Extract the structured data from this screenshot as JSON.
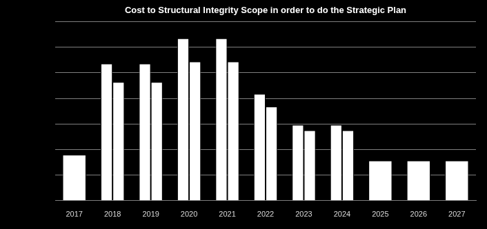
{
  "chart_data": {
    "type": "bar",
    "title": "Cost to Structural Integrity Scope in order to do the Strategic Plan",
    "categories": [
      "2017",
      "2018",
      "2019",
      "2020",
      "2021",
      "2022",
      "2023",
      "2024",
      "2025",
      "2026",
      "2027"
    ],
    "series": [
      {
        "color": "#ffffff",
        "values": [
          18,
          53.6,
          53.6,
          63.5,
          63.5,
          41.8,
          29.7,
          29.7,
          15.7,
          15.7,
          15.7
        ]
      },
      {
        "color": "#ffffff",
        "values": [
          null,
          46.4,
          46.4,
          54.4,
          54.4,
          36.8,
          27.5,
          27.5,
          null,
          null,
          null
        ]
      }
    ],
    "ylim": [
      0,
      70
    ],
    "yticks": [
      0,
      10,
      20,
      30,
      40,
      50,
      60,
      70
    ],
    "grid": true,
    "tick_labels": "x"
  }
}
